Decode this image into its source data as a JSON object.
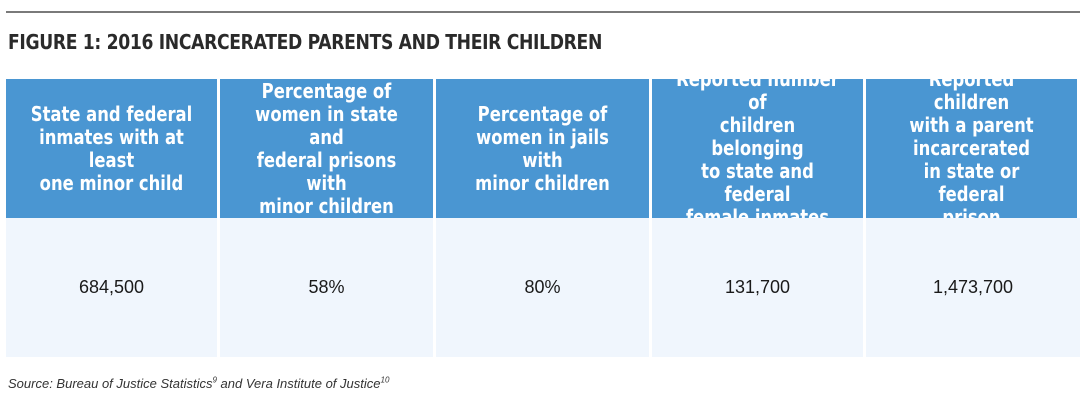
{
  "figure": {
    "title": "FIGURE 1: 2016 INCARCERATED PARENTS AND THEIR CHILDREN"
  },
  "table": {
    "headers": [
      "State and federal\ninmates with at least\none minor child",
      "Percentage of\nwomen in state and\nfederal prisons with\nminor children",
      "Percentage of\nwomen in jails with\nminor children",
      "Reported number of\nchildren belonging\nto state and federal\nfemale inmates",
      "Reported children\nwith a parent\nincarcerated\nin state or federal\nprison"
    ],
    "values": [
      "684,500",
      "58%",
      "80%",
      "131,700",
      "1,473,700"
    ]
  },
  "source": {
    "prefix": "Source: Bureau of Justice Statistics",
    "ref1": "9",
    "middle": " and Vera Institute of Justice",
    "ref2": "10"
  },
  "colors": {
    "header_bg": "#4a96d2",
    "value_bg": "#f0f6fd",
    "rule": "#7a7a7a"
  }
}
